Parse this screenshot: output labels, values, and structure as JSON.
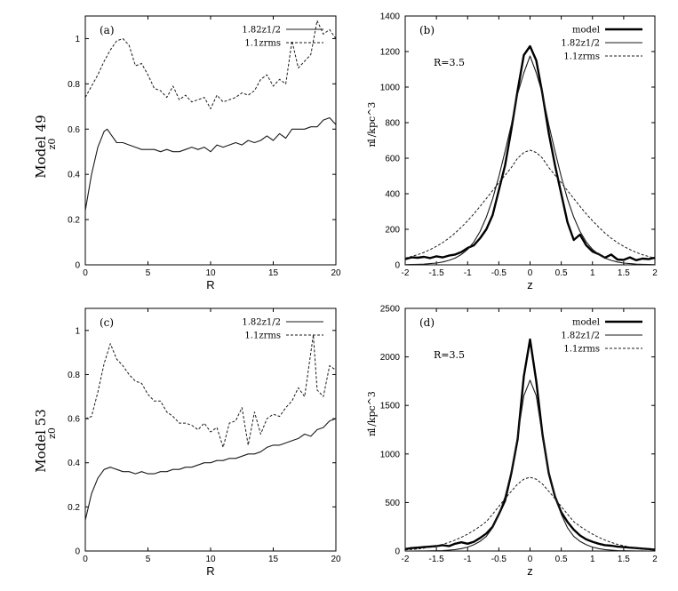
{
  "figure": {
    "row_labels": [
      "Model 49",
      "Model 53"
    ]
  },
  "chart_data": [
    {
      "id": "a",
      "type": "line",
      "panel_label": "(a)",
      "xlabel": "R",
      "ylabel": "z0",
      "xlim": [
        0,
        20
      ],
      "ylim": [
        0,
        1.1
      ],
      "xticks": [
        0,
        5,
        10,
        15,
        20
      ],
      "yticks": [
        0,
        0.2,
        0.4,
        0.6,
        0.8,
        1
      ],
      "legend": {
        "position": "top-right"
      },
      "series": [
        {
          "name": "1.82z1/2",
          "style": "solid",
          "x": [
            0,
            0.5,
            1,
            1.5,
            1.75,
            2,
            2.5,
            3,
            3.5,
            4,
            4.5,
            5,
            5.5,
            6,
            6.5,
            7,
            7.5,
            8,
            8.5,
            9,
            9.5,
            10,
            10.5,
            11,
            11.5,
            12,
            12.5,
            13,
            13.5,
            14,
            14.5,
            15,
            15.5,
            16,
            16.5,
            17,
            17.5,
            18,
            18.5,
            19,
            19.5,
            20
          ],
          "values": [
            0.24,
            0.4,
            0.52,
            0.59,
            0.6,
            0.58,
            0.54,
            0.54,
            0.53,
            0.52,
            0.51,
            0.51,
            0.51,
            0.5,
            0.51,
            0.5,
            0.5,
            0.51,
            0.52,
            0.51,
            0.52,
            0.5,
            0.53,
            0.52,
            0.53,
            0.54,
            0.53,
            0.55,
            0.54,
            0.55,
            0.57,
            0.55,
            0.58,
            0.56,
            0.6,
            0.6,
            0.6,
            0.61,
            0.61,
            0.64,
            0.65,
            0.62
          ]
        },
        {
          "name": "1.1zrms",
          "style": "dashed",
          "x": [
            0,
            0.5,
            1,
            1.5,
            2,
            2.5,
            3,
            3.5,
            4,
            4.5,
            5,
            5.5,
            6,
            6.5,
            7,
            7.5,
            8,
            8.5,
            9,
            9.5,
            10,
            10.5,
            11,
            11.5,
            12,
            12.5,
            13,
            13.5,
            14,
            14.5,
            15,
            15.5,
            16,
            16.5,
            17,
            17.5,
            18,
            18.5,
            19,
            19.5,
            20
          ],
          "values": [
            0.74,
            0.79,
            0.84,
            0.9,
            0.95,
            0.99,
            1.0,
            0.97,
            0.88,
            0.89,
            0.84,
            0.78,
            0.77,
            0.74,
            0.79,
            0.73,
            0.75,
            0.72,
            0.73,
            0.74,
            0.69,
            0.75,
            0.72,
            0.73,
            0.74,
            0.76,
            0.75,
            0.77,
            0.82,
            0.84,
            0.79,
            0.82,
            0.8,
            0.99,
            0.87,
            0.9,
            0.93,
            1.08,
            1.02,
            1.04,
            1.0
          ]
        }
      ]
    },
    {
      "id": "b",
      "type": "line",
      "panel_label": "(b)",
      "annotation": "R=3.5",
      "xlabel": "z",
      "ylabel": "n",
      "ylabel_units": "1/kpc^3",
      "xlim": [
        -2,
        2
      ],
      "ylim": [
        0,
        1400
      ],
      "xticks": [
        -2,
        -1.5,
        -1,
        -0.5,
        0,
        0.5,
        1,
        1.5,
        2
      ],
      "yticks": [
        0,
        200,
        400,
        600,
        800,
        1000,
        1200,
        1400
      ],
      "legend": {
        "position": "top-right"
      },
      "series": [
        {
          "name": "model",
          "style": "thick",
          "x": [
            -2,
            -1.9,
            -1.8,
            -1.7,
            -1.6,
            -1.5,
            -1.4,
            -1.3,
            -1.2,
            -1.1,
            -1.0,
            -0.9,
            -0.8,
            -0.7,
            -0.6,
            -0.5,
            -0.4,
            -0.3,
            -0.2,
            -0.1,
            0.0,
            0.1,
            0.2,
            0.3,
            0.4,
            0.5,
            0.6,
            0.7,
            0.8,
            0.9,
            1.0,
            1.1,
            1.2,
            1.3,
            1.4,
            1.5,
            1.6,
            1.7,
            1.8,
            1.9,
            2.0
          ],
          "values": [
            32,
            42,
            40,
            45,
            38,
            48,
            42,
            52,
            58,
            72,
            95,
            110,
            150,
            200,
            280,
            420,
            560,
            760,
            980,
            1180,
            1230,
            1150,
            960,
            740,
            560,
            400,
            240,
            140,
            170,
            110,
            75,
            60,
            40,
            58,
            30,
            28,
            42,
            26,
            35,
            32,
            40
          ]
        },
        {
          "name": "1.82z1/2",
          "style": "solid",
          "x": [
            -2.0,
            -1.9,
            -1.8,
            -1.7,
            -1.6,
            -1.5,
            -1.4,
            -1.3,
            -1.2,
            -1.1,
            -1.0,
            -0.9,
            -0.8,
            -0.7,
            -0.6,
            -0.5,
            -0.4,
            -0.3,
            -0.2,
            -0.1,
            0.0,
            0.1,
            0.2,
            0.3,
            0.4,
            0.5,
            0.6,
            0.7,
            0.8,
            0.9,
            1.0,
            1.1,
            1.2,
            1.3,
            1.4,
            1.5,
            1.6,
            1.7,
            1.8,
            1.9,
            2.0
          ],
          "values": [
            1,
            2,
            3,
            4,
            7,
            10,
            16,
            25,
            38,
            58,
            87,
            129,
            188,
            268,
            371,
            496,
            639,
            788,
            962,
            1080,
            1175,
            1080,
            962,
            788,
            639,
            496,
            371,
            268,
            188,
            129,
            87,
            58,
            38,
            25,
            16,
            10,
            7,
            4,
            3,
            2,
            1
          ]
        },
        {
          "name": "1.1zrms",
          "style": "dashed",
          "x": [
            -2.0,
            -1.9,
            -1.8,
            -1.7,
            -1.6,
            -1.5,
            -1.4,
            -1.3,
            -1.2,
            -1.1,
            -1.0,
            -0.9,
            -0.8,
            -0.7,
            -0.6,
            -0.5,
            -0.4,
            -0.3,
            -0.2,
            -0.1,
            0.0,
            0.1,
            0.2,
            0.3,
            0.4,
            0.5,
            0.6,
            0.7,
            0.8,
            0.9,
            1.0,
            1.1,
            1.2,
            1.3,
            1.4,
            1.5,
            1.6,
            1.7,
            1.8,
            1.9,
            2.0
          ],
          "values": [
            38,
            47,
            57,
            70,
            86,
            104,
            125,
            150,
            179,
            212,
            248,
            287,
            329,
            373,
            418,
            462,
            504,
            547,
            600,
            632,
            645,
            632,
            600,
            547,
            504,
            462,
            418,
            373,
            329,
            287,
            248,
            212,
            179,
            150,
            125,
            104,
            86,
            70,
            57,
            47,
            38
          ]
        }
      ]
    },
    {
      "id": "c",
      "type": "line",
      "panel_label": "(c)",
      "xlabel": "R",
      "ylabel": "z0",
      "xlim": [
        0,
        20
      ],
      "ylim": [
        0,
        1.1
      ],
      "xticks": [
        0,
        5,
        10,
        15,
        20
      ],
      "yticks": [
        0,
        0.2,
        0.4,
        0.6,
        0.8,
        1
      ],
      "legend": {
        "position": "top-right"
      },
      "series": [
        {
          "name": "1.82z1/2",
          "style": "solid",
          "x": [
            0,
            0.5,
            1,
            1.5,
            2,
            2.5,
            3,
            3.5,
            4,
            4.5,
            5,
            5.5,
            6,
            6.5,
            7,
            7.5,
            8,
            8.5,
            9,
            9.5,
            10,
            10.5,
            11,
            11.5,
            12,
            12.5,
            13,
            13.5,
            14,
            14.5,
            15,
            15.5,
            16,
            16.5,
            17,
            17.5,
            18,
            18.5,
            19,
            19.5,
            20
          ],
          "values": [
            0.14,
            0.26,
            0.33,
            0.37,
            0.38,
            0.37,
            0.36,
            0.36,
            0.35,
            0.36,
            0.35,
            0.35,
            0.36,
            0.36,
            0.37,
            0.37,
            0.38,
            0.38,
            0.39,
            0.4,
            0.4,
            0.41,
            0.41,
            0.42,
            0.42,
            0.43,
            0.44,
            0.44,
            0.45,
            0.47,
            0.48,
            0.48,
            0.49,
            0.5,
            0.51,
            0.53,
            0.52,
            0.55,
            0.56,
            0.59,
            0.6
          ]
        },
        {
          "name": "1.1zrms",
          "style": "dashed",
          "x": [
            0,
            0.5,
            1,
            1.5,
            2,
            2.5,
            3,
            3.5,
            4,
            4.5,
            5,
            5.5,
            6,
            6.5,
            7,
            7.5,
            8,
            8.5,
            9,
            9.5,
            10,
            10.5,
            11,
            11.5,
            12,
            12.5,
            13,
            13.5,
            14,
            14.5,
            15,
            15.5,
            16,
            16.5,
            17,
            17.5,
            18,
            18.2,
            18.5,
            19,
            19.5,
            20
          ],
          "values": [
            0.6,
            0.61,
            0.72,
            0.85,
            0.94,
            0.87,
            0.84,
            0.8,
            0.77,
            0.76,
            0.71,
            0.68,
            0.68,
            0.63,
            0.61,
            0.58,
            0.58,
            0.57,
            0.55,
            0.58,
            0.54,
            0.56,
            0.47,
            0.58,
            0.59,
            0.65,
            0.48,
            0.63,
            0.53,
            0.6,
            0.62,
            0.61,
            0.65,
            0.68,
            0.74,
            0.7,
            0.9,
            0.98,
            0.73,
            0.7,
            0.84,
            0.82
          ]
        }
      ]
    },
    {
      "id": "d",
      "type": "line",
      "panel_label": "(d)",
      "annotation": "R=3.5",
      "xlabel": "z",
      "ylabel": "n",
      "ylabel_units": "1/kpc^3",
      "xlim": [
        -2,
        2
      ],
      "ylim": [
        0,
        2500
      ],
      "xticks": [
        -2,
        -1.5,
        -1,
        -0.5,
        0,
        0.5,
        1,
        1.5,
        2
      ],
      "yticks": [
        0,
        500,
        1000,
        1500,
        2000,
        2500
      ],
      "legend": {
        "position": "top-right"
      },
      "series": [
        {
          "name": "model",
          "style": "thick",
          "x": [
            -2,
            -1.9,
            -1.8,
            -1.7,
            -1.6,
            -1.5,
            -1.4,
            -1.3,
            -1.2,
            -1.1,
            -1.0,
            -0.9,
            -0.8,
            -0.7,
            -0.6,
            -0.5,
            -0.4,
            -0.3,
            -0.2,
            -0.1,
            0.0,
            0.1,
            0.2,
            0.3,
            0.4,
            0.5,
            0.6,
            0.7,
            0.8,
            0.9,
            1.0,
            1.1,
            1.2,
            1.3,
            1.4,
            1.5,
            1.6,
            1.7,
            1.8,
            1.9,
            2.0
          ],
          "values": [
            20,
            30,
            35,
            40,
            45,
            50,
            60,
            50,
            75,
            90,
            75,
            95,
            135,
            180,
            250,
            380,
            520,
            800,
            1150,
            1800,
            2180,
            1750,
            1200,
            800,
            560,
            400,
            300,
            220,
            160,
            120,
            95,
            75,
            60,
            55,
            45,
            40,
            35,
            30,
            25,
            20,
            15
          ]
        },
        {
          "name": "1.82z1/2",
          "style": "solid",
          "x": [
            -2.0,
            -1.9,
            -1.8,
            -1.7,
            -1.6,
            -1.5,
            -1.4,
            -1.3,
            -1.2,
            -1.1,
            -1.0,
            -0.9,
            -0.8,
            -0.7,
            -0.6,
            -0.5,
            -0.4,
            -0.3,
            -0.2,
            -0.1,
            0.0,
            0.1,
            0.2,
            0.3,
            0.4,
            0.5,
            0.6,
            0.7,
            0.8,
            0.9,
            1.0,
            1.1,
            1.2,
            1.3,
            1.4,
            1.5,
            1.6,
            1.7,
            1.8,
            1.9,
            2.0
          ],
          "values": [
            0,
            0,
            1,
            1,
            2,
            3,
            5,
            9,
            15,
            25,
            40,
            65,
            100,
            150,
            240,
            380,
            560,
            820,
            1180,
            1600,
            1760,
            1600,
            1180,
            820,
            560,
            380,
            240,
            150,
            100,
            65,
            40,
            25,
            15,
            9,
            5,
            3,
            2,
            1,
            1,
            0,
            0
          ]
        },
        {
          "name": "1.1zrms",
          "style": "dashed",
          "x": [
            -2.0,
            -1.9,
            -1.8,
            -1.7,
            -1.6,
            -1.5,
            -1.4,
            -1.3,
            -1.2,
            -1.1,
            -1.0,
            -0.9,
            -0.8,
            -0.7,
            -0.6,
            -0.5,
            -0.4,
            -0.3,
            -0.2,
            -0.1,
            0.0,
            0.1,
            0.2,
            0.3,
            0.4,
            0.5,
            0.6,
            0.7,
            0.8,
            0.9,
            1.0,
            1.1,
            1.2,
            1.3,
            1.4,
            1.5,
            1.6,
            1.7,
            1.8,
            1.9,
            2.0
          ],
          "values": [
            12,
            16,
            22,
            30,
            40,
            53,
            69,
            89,
            113,
            141,
            174,
            212,
            255,
            302,
            380,
            460,
            540,
            615,
            690,
            740,
            760,
            740,
            690,
            615,
            540,
            460,
            380,
            302,
            255,
            212,
            174,
            141,
            113,
            89,
            69,
            53,
            40,
            30,
            22,
            16,
            12
          ]
        }
      ]
    }
  ]
}
